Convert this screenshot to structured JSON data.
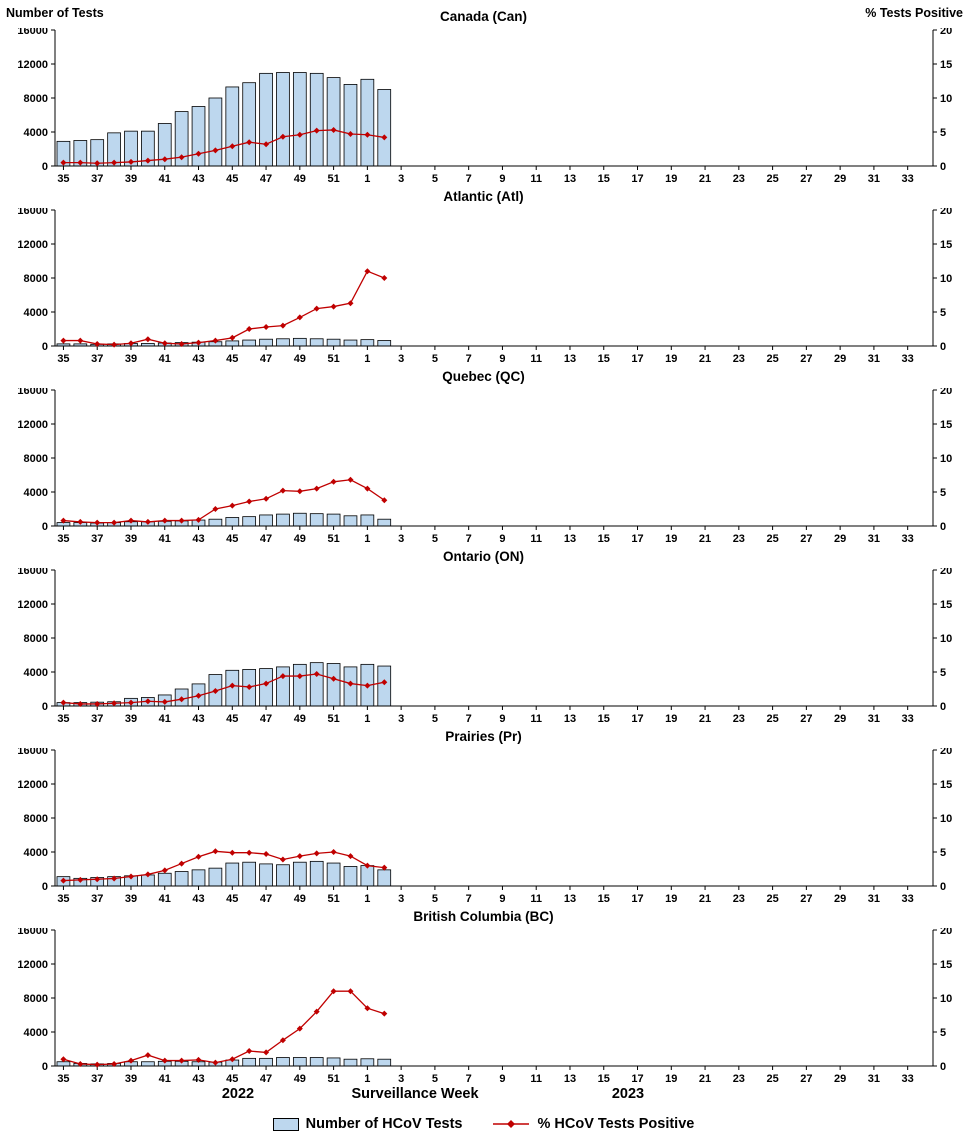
{
  "header": {
    "left_axis_title": "Number of Tests",
    "right_axis_title": "% Tests Positive"
  },
  "x_axis": {
    "title": "Surveillance Week",
    "start_week": 35,
    "weeks_total": 52,
    "tick_labels": [
      "35",
      "37",
      "39",
      "41",
      "43",
      "45",
      "47",
      "49",
      "51",
      "1",
      "3",
      "5",
      "7",
      "9",
      "11",
      "13",
      "15",
      "17",
      "19",
      "21",
      "23",
      "25",
      "27",
      "29",
      "31",
      "33"
    ],
    "year_left": "2022",
    "year_right": "2023"
  },
  "y_axis_left": {
    "min": 0,
    "max": 16000,
    "tick_labels": [
      "0",
      "4000",
      "8000",
      "12000",
      "16000"
    ]
  },
  "y_axis_right": {
    "min": 0,
    "max": 20,
    "tick_labels": [
      "0",
      "5",
      "10",
      "15",
      "20"
    ]
  },
  "legend": {
    "bars_label": "Number of HCoV Tests",
    "line_label": "% HCoV Tests Positive"
  },
  "colors": {
    "bar_fill": "#BDD7EE",
    "bar_stroke": "#000000",
    "line": "#C00000",
    "text": "#000000",
    "background": "#FFFFFF"
  },
  "chart_data": [
    {
      "type": "bar",
      "title": "Canada (Can)",
      "weeks": [
        35,
        36,
        37,
        38,
        39,
        40,
        41,
        42,
        43,
        44,
        45,
        46,
        47,
        48,
        49,
        50,
        51,
        52,
        1,
        2
      ],
      "ylim_left": [
        0,
        16000
      ],
      "ylim_right": [
        0,
        20
      ],
      "series": [
        {
          "name": "Number of HCoV Tests",
          "kind": "bar",
          "axis": "left",
          "values": [
            2900,
            3000,
            3100,
            3900,
            4100,
            4100,
            5000,
            6400,
            7000,
            8000,
            9300,
            9800,
            10900,
            11000,
            11000,
            10900,
            10400,
            9600,
            10200,
            9000
          ]
        },
        {
          "name": "% HCoV Tests Positive",
          "kind": "line",
          "axis": "right",
          "values": [
            0.5,
            0.5,
            0.4,
            0.5,
            0.6,
            0.8,
            1.0,
            1.3,
            1.8,
            2.3,
            2.9,
            3.5,
            3.2,
            4.3,
            4.6,
            5.2,
            5.3,
            4.7,
            4.6,
            4.2
          ]
        }
      ]
    },
    {
      "type": "bar",
      "title": "Atlantic (Atl)",
      "weeks": [
        35,
        36,
        37,
        38,
        39,
        40,
        41,
        42,
        43,
        44,
        45,
        46,
        47,
        48,
        49,
        50,
        51,
        52,
        1,
        2
      ],
      "ylim_left": [
        0,
        16000
      ],
      "ylim_right": [
        0,
        20
      ],
      "series": [
        {
          "name": "Number of HCoV Tests",
          "kind": "bar",
          "axis": "left",
          "values": [
            250,
            250,
            200,
            250,
            300,
            300,
            350,
            400,
            450,
            500,
            600,
            700,
            800,
            850,
            900,
            850,
            800,
            700,
            750,
            650
          ]
        },
        {
          "name": "% HCoV Tests Positive",
          "kind": "line",
          "axis": "right",
          "values": [
            0.8,
            0.8,
            0.3,
            0.2,
            0.4,
            1.0,
            0.4,
            0.3,
            0.5,
            0.8,
            1.2,
            2.5,
            2.8,
            3.0,
            4.2,
            5.5,
            5.8,
            6.3,
            11.0,
            10.0
          ]
        }
      ]
    },
    {
      "type": "bar",
      "title": "Quebec (QC)",
      "weeks": [
        35,
        36,
        37,
        38,
        39,
        40,
        41,
        42,
        43,
        44,
        45,
        46,
        47,
        48,
        49,
        50,
        51,
        52,
        1,
        2
      ],
      "ylim_left": [
        0,
        16000
      ],
      "ylim_right": [
        0,
        20
      ],
      "series": [
        {
          "name": "Number of HCoV Tests",
          "kind": "bar",
          "axis": "left",
          "values": [
            400,
            400,
            350,
            400,
            500,
            500,
            550,
            600,
            700,
            800,
            1000,
            1100,
            1300,
            1400,
            1500,
            1450,
            1400,
            1200,
            1300,
            800
          ]
        },
        {
          "name": "% HCoV Tests Positive",
          "kind": "line",
          "axis": "right",
          "values": [
            0.8,
            0.6,
            0.5,
            0.5,
            0.8,
            0.6,
            0.8,
            0.8,
            0.9,
            2.5,
            3.0,
            3.6,
            4.0,
            5.2,
            5.1,
            5.5,
            6.5,
            6.8,
            5.5,
            3.8
          ]
        }
      ]
    },
    {
      "type": "bar",
      "title": "Ontario (ON)",
      "weeks": [
        35,
        36,
        37,
        38,
        39,
        40,
        41,
        42,
        43,
        44,
        45,
        46,
        47,
        48,
        49,
        50,
        51,
        52,
        1,
        2
      ],
      "ylim_left": [
        0,
        16000
      ],
      "ylim_right": [
        0,
        20
      ],
      "series": [
        {
          "name": "Number of HCoV Tests",
          "kind": "bar",
          "axis": "left",
          "values": [
            400,
            400,
            450,
            500,
            900,
            1000,
            1300,
            2000,
            2600,
            3700,
            4200,
            4300,
            4400,
            4600,
            4900,
            5100,
            5000,
            4600,
            4900,
            4700
          ]
        },
        {
          "name": "% HCoV Tests Positive",
          "kind": "line",
          "axis": "right",
          "values": [
            0.5,
            0.3,
            0.3,
            0.4,
            0.5,
            0.7,
            0.6,
            1.0,
            1.5,
            2.2,
            3.0,
            2.8,
            3.3,
            4.4,
            4.4,
            4.7,
            4.0,
            3.3,
            3.0,
            3.5
          ]
        }
      ]
    },
    {
      "type": "bar",
      "title": "Prairies (Pr)",
      "weeks": [
        35,
        36,
        37,
        38,
        39,
        40,
        41,
        42,
        43,
        44,
        45,
        46,
        47,
        48,
        49,
        50,
        51,
        52,
        1,
        2
      ],
      "ylim_left": [
        0,
        16000
      ],
      "ylim_right": [
        0,
        20
      ],
      "series": [
        {
          "name": "Number of HCoV Tests",
          "kind": "bar",
          "axis": "left",
          "values": [
            1100,
            900,
            1000,
            1100,
            1200,
            1300,
            1500,
            1700,
            1900,
            2100,
            2700,
            2800,
            2600,
            2500,
            2800,
            2900,
            2700,
            2300,
            2400,
            1900
          ]
        },
        {
          "name": "% HCoV Tests Positive",
          "kind": "line",
          "axis": "right",
          "values": [
            0.8,
            0.9,
            1.0,
            1.1,
            1.4,
            1.7,
            2.3,
            3.3,
            4.3,
            5.1,
            4.9,
            4.9,
            4.7,
            3.9,
            4.4,
            4.8,
            5.0,
            4.4,
            3.0,
            2.7
          ]
        }
      ]
    },
    {
      "type": "bar",
      "title": "British Columbia (BC)",
      "weeks": [
        35,
        36,
        37,
        38,
        39,
        40,
        41,
        42,
        43,
        44,
        45,
        46,
        47,
        48,
        49,
        50,
        51,
        52,
        1,
        2
      ],
      "ylim_left": [
        0,
        16000
      ],
      "ylim_right": [
        0,
        20
      ],
      "series": [
        {
          "name": "Number of HCoV Tests",
          "kind": "bar",
          "axis": "left",
          "values": [
            500,
            300,
            250,
            300,
            500,
            500,
            550,
            550,
            500,
            450,
            700,
            900,
            900,
            1000,
            1000,
            1000,
            950,
            800,
            850,
            800
          ]
        },
        {
          "name": "% HCoV Tests Positive",
          "kind": "line",
          "axis": "right",
          "values": [
            1.0,
            0.3,
            0.2,
            0.3,
            0.8,
            1.6,
            0.8,
            0.8,
            0.9,
            0.5,
            1.0,
            2.2,
            2.0,
            3.8,
            5.5,
            8.0,
            11.0,
            11.0,
            8.5,
            7.7
          ]
        }
      ]
    }
  ]
}
